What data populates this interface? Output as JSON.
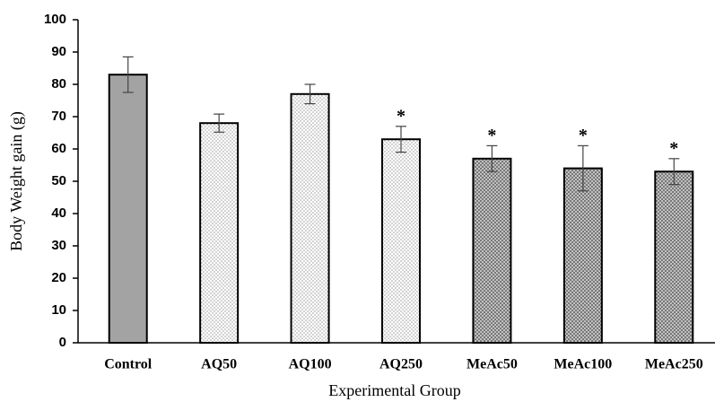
{
  "chart_data": {
    "type": "bar",
    "x_label": "Experimental Group",
    "y_label": "Body Weight gain (g)",
    "categories": [
      "Control",
      "AQ50",
      "AQ100",
      "AQ250",
      "MeAc50",
      "MeAc100",
      "MeAc250"
    ],
    "values": [
      83,
      68,
      77,
      63,
      57,
      54,
      53
    ],
    "errors": [
      5.5,
      2.8,
      3,
      4,
      4,
      7,
      4
    ],
    "annotations": [
      null,
      null,
      null,
      "*",
      "*",
      "*",
      "*"
    ],
    "colors": [
      "#a3a3a3",
      "#ffffff",
      "#ffffff",
      "#ffffff",
      "#c8c8c8",
      "#c8c8c8",
      "#c8c8c8"
    ],
    "patterns": [
      "solid",
      "dots",
      "dots",
      "dots",
      "cross",
      "cross",
      "cross"
    ],
    "ylim": [
      0,
      100
    ],
    "yticks": [
      0,
      10,
      20,
      30,
      40,
      50,
      60,
      70,
      80,
      90,
      100
    ],
    "grid": false
  }
}
